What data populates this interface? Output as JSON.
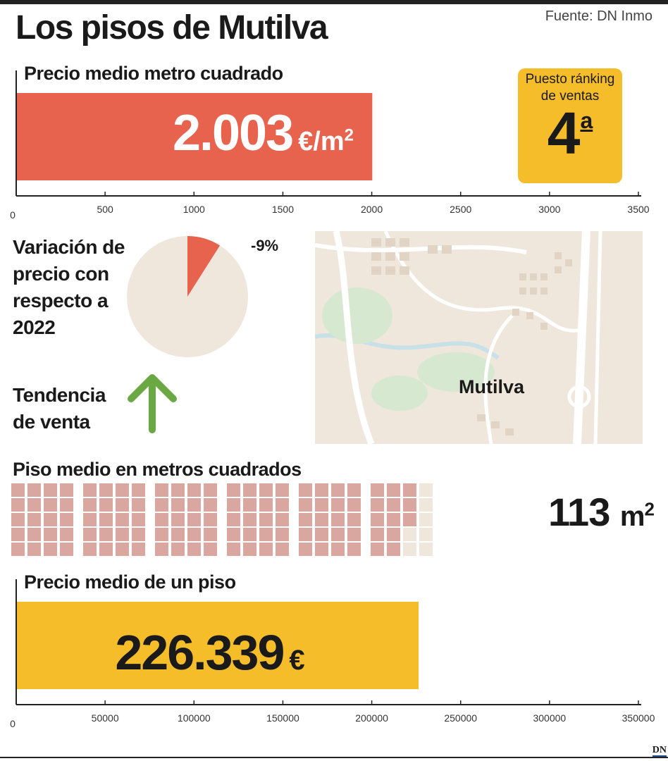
{
  "title": "Los pisos de Mutilva",
  "source": "Fuente: DN Inmo",
  "colors": {
    "price_bar": "#e8634e",
    "flat_bar": "#f6bd2a",
    "rank_box": "#f6bd2a",
    "pie_main": "#efe7dc",
    "pie_slice": "#e8634e",
    "arrow": "#6aa843",
    "waffle_filled": "#d9a79f",
    "waffle_empty": "#efe7dc"
  },
  "price_per_sqm": {
    "title": "Precio medio metro cuadrado",
    "value_text": "2.003",
    "unit_text": "€/m",
    "unit_sup": "2"
  },
  "rank": {
    "caption_line1": "Puesto ránking",
    "caption_line2": "de ventas",
    "value": "4",
    "ordinal": "a"
  },
  "variation": {
    "label": "Variación de precio con respecto a 2022",
    "value_text": "-9%",
    "value": -9
  },
  "trend": {
    "label_line1": "Tendencia",
    "label_line2": "de venta",
    "icon": "arrow-up-icon"
  },
  "map": {
    "label": "Mutilva"
  },
  "sqm": {
    "title": "Piso medio en metros cuadrados",
    "value_text": "113",
    "unit_text": "m",
    "unit_sup": "2"
  },
  "flat_price": {
    "title": "Precio medio de un piso",
    "value_text": "226.339",
    "unit_text": "€"
  },
  "logo": "DN",
  "chart_data": [
    {
      "type": "bar",
      "title": "Precio medio metro cuadrado",
      "categories": [
        "Mutilva"
      ],
      "values": [
        2003
      ],
      "xlim": [
        0,
        3500
      ],
      "ticks": [
        "0",
        "500",
        "1000",
        "1500",
        "2000",
        "2500",
        "3000",
        "3500"
      ],
      "tick_values": [
        0,
        500,
        1000,
        1500,
        2000,
        2500,
        3000,
        3500
      ]
    },
    {
      "type": "pie",
      "title": "Variación de precio con respecto a 2022",
      "values": [
        9,
        91
      ],
      "labels": [
        "-9%",
        ""
      ]
    },
    {
      "type": "bar",
      "title": "Piso medio en metros cuadrados",
      "categories": [
        "Mutilva"
      ],
      "values": [
        113
      ],
      "total_cells": 120,
      "blocks": 6,
      "cells_per_block": 20
    },
    {
      "type": "bar",
      "title": "Precio medio de un piso",
      "categories": [
        "Mutilva"
      ],
      "values": [
        226339
      ],
      "xlim": [
        0,
        350000
      ],
      "ticks": [
        "0",
        "50000",
        "100000",
        "150000",
        "200000",
        "250000",
        "300000",
        "350000"
      ],
      "tick_values": [
        0,
        50000,
        100000,
        150000,
        200000,
        250000,
        300000,
        350000
      ]
    }
  ]
}
